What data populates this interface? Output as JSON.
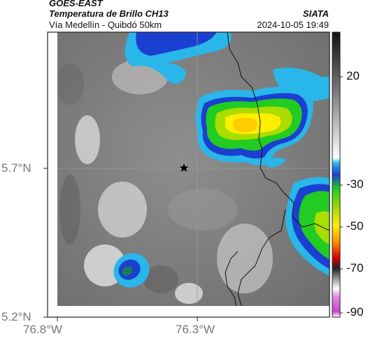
{
  "header": {
    "agency": "GOES-EAST",
    "product": "Temperatura de Brillo CH13",
    "region": "Vía Medellín - Quibdó 50km",
    "org": "SIATA",
    "datetime": "2024-10-05 19:49"
  },
  "map": {
    "lon_ticks": [
      "76.8°W",
      "76.3°W"
    ],
    "lat_ticks": [
      "5.7°N",
      "5.2°N"
    ],
    "grid": true,
    "marker_icon": "star-icon"
  },
  "colorbar": {
    "labels": [
      "20",
      "-30",
      "-50",
      "-70",
      "-90"
    ],
    "colors": {
      "warm_gray_low": "#3a3a3a",
      "cyan": "#29b6e8",
      "blue": "#1b3fd0",
      "green": "#22cc22",
      "yellow": "#ffee00",
      "orange": "#ff8800",
      "red": "#dd0000",
      "magenta": "#cc44cc"
    }
  }
}
